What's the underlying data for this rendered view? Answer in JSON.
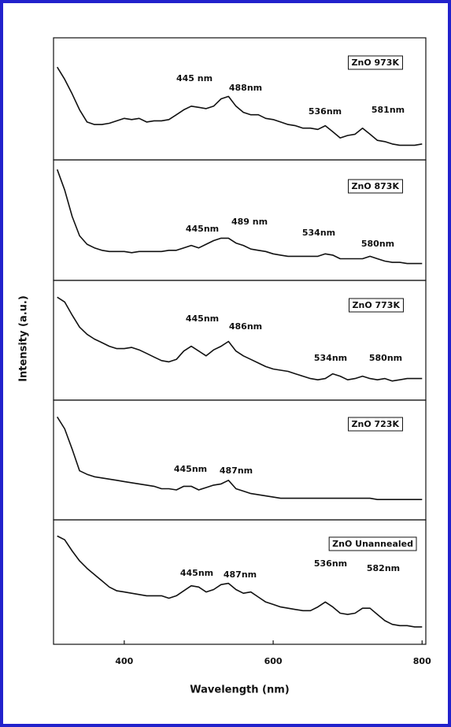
{
  "chart_data": [
    {
      "type": "line",
      "x": [
        310,
        320,
        330,
        340,
        350,
        360,
        370,
        380,
        390,
        400,
        410,
        420,
        430,
        440,
        450,
        460,
        470,
        480,
        490,
        500,
        510,
        520,
        530,
        540,
        550,
        560,
        570,
        580,
        590,
        600,
        610,
        620,
        630,
        640,
        650,
        660,
        670,
        680,
        690,
        700,
        710,
        720,
        730,
        740,
        750,
        760,
        770,
        780,
        790,
        800
      ],
      "xlim": [
        305,
        805
      ],
      "ylim": [
        0,
        100
      ],
      "series": [
        {
          "name": "ZnO 973K",
          "color": "#111111",
          "values": [
            76,
            66,
            54,
            41,
            31,
            29,
            29,
            30,
            32,
            34,
            33,
            34,
            31,
            32,
            32,
            33,
            37,
            41,
            44,
            43,
            42,
            44,
            50,
            52,
            44,
            39,
            37,
            37,
            34,
            33,
            31,
            29,
            28,
            26,
            26,
            25,
            28,
            23,
            18,
            20,
            21,
            26,
            21,
            16,
            15,
            13,
            12,
            12,
            12,
            13
          ]
        }
      ],
      "annotations": [
        "445 nm",
        "488nm",
        "536nm",
        "581nm"
      ]
    },
    {
      "type": "line",
      "x": [
        310,
        320,
        330,
        340,
        350,
        360,
        370,
        380,
        390,
        400,
        410,
        420,
        430,
        440,
        450,
        460,
        470,
        480,
        490,
        500,
        510,
        520,
        530,
        540,
        550,
        560,
        570,
        580,
        590,
        600,
        610,
        620,
        630,
        640,
        650,
        660,
        670,
        680,
        690,
        700,
        710,
        720,
        730,
        740,
        750,
        760,
        770,
        780,
        790,
        800
      ],
      "xlim": [
        305,
        805
      ],
      "ylim": [
        0,
        100
      ],
      "series": [
        {
          "name": "ZnO 873K",
          "color": "#111111",
          "values": [
            92,
            75,
            53,
            37,
            30,
            27,
            25,
            24,
            24,
            24,
            23,
            24,
            24,
            24,
            24,
            25,
            25,
            27,
            29,
            27,
            30,
            33,
            35,
            35,
            31,
            29,
            26,
            25,
            24,
            22,
            21,
            20,
            20,
            20,
            20,
            20,
            22,
            21,
            18,
            18,
            18,
            18,
            20,
            18,
            16,
            15,
            15,
            14,
            14,
            14
          ]
        }
      ],
      "annotations": [
        "445nm",
        "489 nm",
        "534nm",
        "580nm"
      ]
    },
    {
      "type": "line",
      "x": [
        310,
        320,
        330,
        340,
        350,
        360,
        370,
        380,
        390,
        400,
        410,
        420,
        430,
        440,
        450,
        460,
        470,
        480,
        490,
        500,
        510,
        520,
        530,
        540,
        550,
        560,
        570,
        580,
        590,
        600,
        610,
        620,
        630,
        640,
        650,
        660,
        670,
        680,
        690,
        700,
        710,
        720,
        730,
        740,
        750,
        760,
        770,
        780,
        790,
        800
      ],
      "xlim": [
        305,
        805
      ],
      "ylim": [
        0,
        100
      ],
      "series": [
        {
          "name": "ZnO 773K",
          "color": "#111111",
          "values": [
            86,
            82,
            71,
            61,
            55,
            51,
            48,
            45,
            43,
            43,
            44,
            42,
            39,
            36,
            33,
            32,
            34,
            41,
            45,
            41,
            37,
            42,
            45,
            49,
            41,
            37,
            34,
            31,
            28,
            26,
            25,
            24,
            22,
            20,
            18,
            17,
            18,
            22,
            20,
            17,
            18,
            20,
            18,
            17,
            18,
            16,
            17,
            18,
            18,
            18
          ]
        }
      ],
      "annotations": [
        "445nm",
        "486nm",
        "534nm",
        "580nm"
      ],
      "y_label": "Intensity (a.u.)"
    },
    {
      "type": "line",
      "x": [
        310,
        320,
        330,
        340,
        350,
        360,
        370,
        380,
        390,
        400,
        410,
        420,
        430,
        440,
        450,
        460,
        470,
        480,
        490,
        500,
        510,
        520,
        530,
        540,
        550,
        560,
        570,
        580,
        590,
        600,
        610,
        620,
        630,
        640,
        650,
        660,
        670,
        680,
        690,
        700,
        710,
        720,
        730,
        740,
        750,
        760,
        770,
        780,
        790,
        800
      ],
      "xlim": [
        305,
        805
      ],
      "ylim": [
        0,
        100
      ],
      "series": [
        {
          "name": "ZnO 723K",
          "color": "#111111",
          "values": [
            86,
            76,
            59,
            41,
            38,
            36,
            35,
            34,
            33,
            32,
            31,
            30,
            29,
            28,
            26,
            26,
            25,
            28,
            28,
            25,
            27,
            29,
            30,
            33,
            26,
            24,
            22,
            21,
            20,
            19,
            18,
            18,
            18,
            18,
            18,
            18,
            18,
            18,
            18,
            18,
            18,
            18,
            18,
            17,
            17,
            17,
            17,
            17,
            17,
            17
          ]
        }
      ],
      "annotations": [
        "445nm",
        "487nm"
      ]
    },
    {
      "type": "line",
      "x": [
        310,
        320,
        330,
        340,
        350,
        360,
        370,
        380,
        390,
        400,
        410,
        420,
        430,
        440,
        450,
        460,
        470,
        480,
        490,
        500,
        510,
        520,
        530,
        540,
        550,
        560,
        570,
        580,
        590,
        600,
        610,
        620,
        630,
        640,
        650,
        660,
        670,
        680,
        690,
        700,
        710,
        720,
        730,
        740,
        750,
        760,
        770,
        780,
        790,
        800
      ],
      "xlim": [
        305,
        805
      ],
      "ylim": [
        0,
        100
      ],
      "series": [
        {
          "name": "ZnO Unannealed",
          "color": "#111111",
          "values": [
            87,
            84,
            75,
            67,
            61,
            56,
            51,
            46,
            43,
            42,
            41,
            40,
            39,
            39,
            39,
            37,
            39,
            43,
            47,
            46,
            42,
            44,
            48,
            49,
            44,
            41,
            42,
            38,
            34,
            32,
            30,
            29,
            28,
            27,
            27,
            30,
            34,
            30,
            25,
            24,
            25,
            29,
            29,
            24,
            19,
            16,
            15,
            15,
            14,
            14
          ]
        }
      ],
      "annotations": [
        "445nm",
        "487nm",
        "536nm",
        "582nm"
      ],
      "xticks": [
        400,
        600,
        800
      ],
      "x_label": "Wavelength (nm)"
    }
  ]
}
